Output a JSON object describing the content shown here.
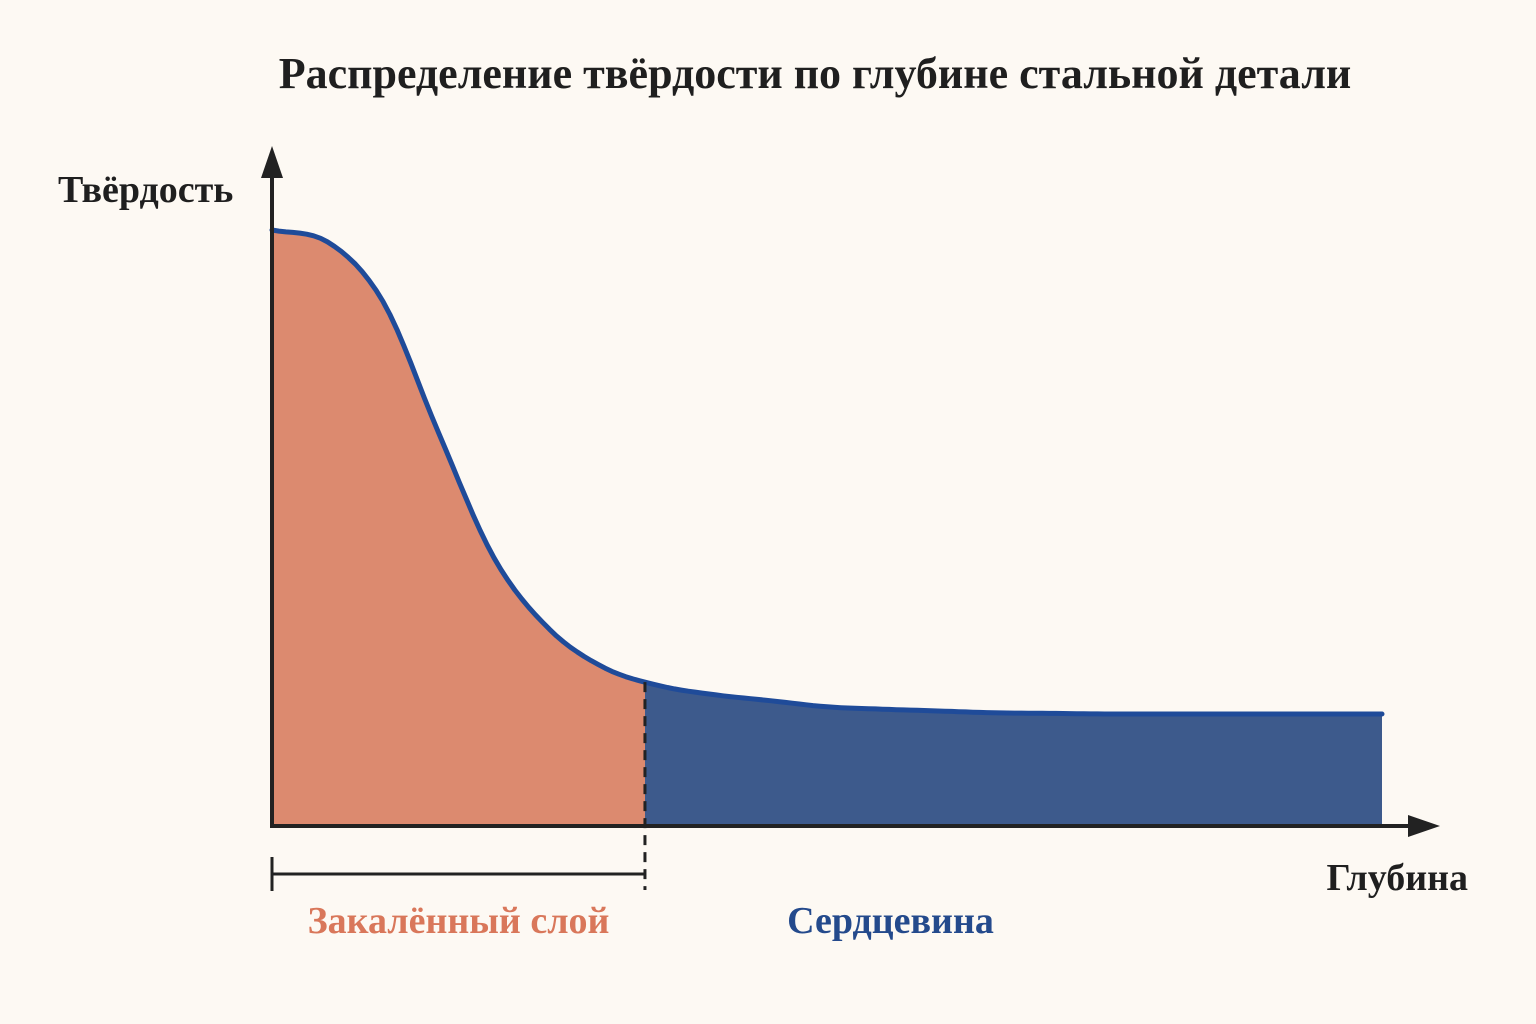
{
  "chart_data": {
    "type": "area",
    "title": "Распределение твёрдости по глубине стальной детали",
    "xlabel": "Глубина",
    "ylabel": "Твёрдость",
    "axis_ticks": false,
    "grid": false,
    "x": [
      0,
      0.05,
      0.1,
      0.15,
      0.2,
      0.25,
      0.3,
      0.35,
      0.4,
      0.45,
      0.5,
      0.55,
      0.6,
      0.65,
      0.7,
      0.75,
      0.8,
      0.85,
      0.9,
      0.95,
      1.0
    ],
    "y": [
      1.0,
      0.98,
      0.88,
      0.66,
      0.45,
      0.33,
      0.265,
      0.235,
      0.22,
      0.21,
      0.2,
      0.196,
      0.193,
      0.19,
      0.189,
      0.188,
      0.188,
      0.188,
      0.188,
      0.188,
      0.188
    ],
    "xlim": [
      0,
      1.05
    ],
    "ylim": [
      0,
      1.12
    ],
    "boundary_x": 0.336,
    "regions": [
      {
        "name": "Закалённый слой",
        "x_range": [
          0,
          0.336
        ],
        "color": "#dc8a6f",
        "label_color": "#d9775a"
      },
      {
        "name": "Сердцевина",
        "x_range": [
          0.336,
          1.0
        ],
        "color": "#3d5a8c",
        "label_color": "#244a8c"
      }
    ],
    "curve_color": "#1f4b99",
    "axis_color": "#222222"
  }
}
